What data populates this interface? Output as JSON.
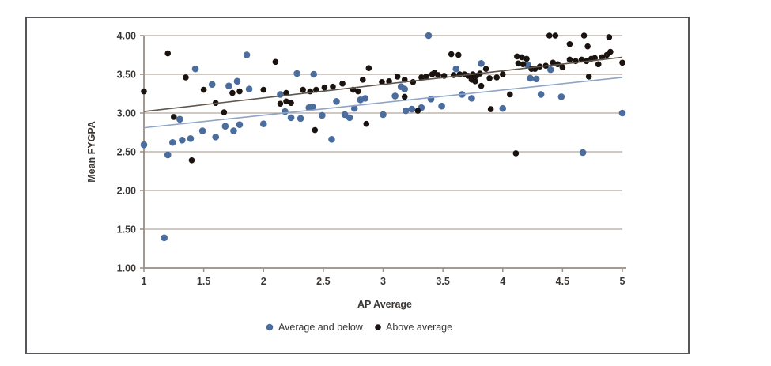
{
  "figure": {
    "background": "#ffffff",
    "border_color": "#55565a"
  },
  "colors": {
    "grid": "#b3a69e",
    "axis": "#9a8e85",
    "text": "#3a3633",
    "blue_marker": "#4a6d9e",
    "black_marker": "#1a1310",
    "blue_trend": "#8fa5c6",
    "black_trend": "#5f564e"
  },
  "chart_data": {
    "type": "scatter",
    "title": "",
    "xlabel": "AP Average",
    "ylabel": "Mean FYGPA",
    "xlim": [
      1,
      5
    ],
    "ylim": [
      1.0,
      4.0
    ],
    "x_ticks": [
      1,
      1.5,
      2,
      2.5,
      3,
      3.5,
      4,
      4.5,
      5
    ],
    "x_tick_labels": [
      "1",
      "1.5",
      "2",
      "2.5",
      "3",
      "3.5",
      "4",
      "4.5",
      "5"
    ],
    "y_ticks": [
      1.0,
      1.5,
      2.0,
      2.5,
      3.0,
      3.5,
      4.0
    ],
    "y_tick_labels": [
      "1.00",
      "1.50",
      "2.00",
      "2.50",
      "3.00",
      "3.50",
      "4.00"
    ],
    "grid": "horizontal-only",
    "legend_position": "bottom-center",
    "series": [
      {
        "name": "Average and below",
        "color": "#4a6d9e",
        "marker_radius": 4.3,
        "trend_line": {
          "x": [
            1,
            5
          ],
          "y": [
            2.81,
            3.46
          ],
          "color": "#8fa5c6"
        },
        "points": [
          [
            1.0,
            2.59
          ],
          [
            1.17,
            1.39
          ],
          [
            1.2,
            2.46
          ],
          [
            1.24,
            2.62
          ],
          [
            1.32,
            2.65
          ],
          [
            1.39,
            2.67
          ],
          [
            1.3,
            2.92
          ],
          [
            1.43,
            3.57
          ],
          [
            1.49,
            2.77
          ],
          [
            1.57,
            3.37
          ],
          [
            1.6,
            2.69
          ],
          [
            1.68,
            2.83
          ],
          [
            1.71,
            3.35
          ],
          [
            1.78,
            3.41
          ],
          [
            1.75,
            2.77
          ],
          [
            1.8,
            2.85
          ],
          [
            1.86,
            3.75
          ],
          [
            1.88,
            3.31
          ],
          [
            2.0,
            2.86
          ],
          [
            2.14,
            3.24
          ],
          [
            2.18,
            3.02
          ],
          [
            2.23,
            2.94
          ],
          [
            2.28,
            3.51
          ],
          [
            2.31,
            2.93
          ],
          [
            2.38,
            3.07
          ],
          [
            2.41,
            3.08
          ],
          [
            2.42,
            3.5
          ],
          [
            2.49,
            2.97
          ],
          [
            2.57,
            2.66
          ],
          [
            2.61,
            3.15
          ],
          [
            2.68,
            2.98
          ],
          [
            2.72,
            2.94
          ],
          [
            2.76,
            3.06
          ],
          [
            2.81,
            3.17
          ],
          [
            2.85,
            3.19
          ],
          [
            3.0,
            2.98
          ],
          [
            3.1,
            3.22
          ],
          [
            3.15,
            3.34
          ],
          [
            3.18,
            3.31
          ],
          [
            3.19,
            3.03
          ],
          [
            3.24,
            3.05
          ],
          [
            3.32,
            3.07
          ],
          [
            3.38,
            4.0
          ],
          [
            3.4,
            3.18
          ],
          [
            3.49,
            3.09
          ],
          [
            3.61,
            3.57
          ],
          [
            3.66,
            3.24
          ],
          [
            3.74,
            3.19
          ],
          [
            3.82,
            3.64
          ],
          [
            4.0,
            3.06
          ],
          [
            4.21,
            3.62
          ],
          [
            4.23,
            3.45
          ],
          [
            4.28,
            3.44
          ],
          [
            4.32,
            3.24
          ],
          [
            4.4,
            3.56
          ],
          [
            4.49,
            3.21
          ],
          [
            4.67,
            2.49
          ],
          [
            5.0,
            3.0
          ]
        ]
      },
      {
        "name": "Above average",
        "color": "#1a1310",
        "marker_radius": 3.8,
        "trend_line": {
          "x": [
            1,
            5
          ],
          "y": [
            3.02,
            3.72
          ],
          "color": "#5f564e"
        },
        "points": [
          [
            1.0,
            3.28
          ],
          [
            1.2,
            3.77
          ],
          [
            1.25,
            2.95
          ],
          [
            1.35,
            3.46
          ],
          [
            1.4,
            2.39
          ],
          [
            1.5,
            3.3
          ],
          [
            1.6,
            3.13
          ],
          [
            1.67,
            3.01
          ],
          [
            1.74,
            3.26
          ],
          [
            1.8,
            3.28
          ],
          [
            2.0,
            3.3
          ],
          [
            2.1,
            3.66
          ],
          [
            2.14,
            3.12
          ],
          [
            2.19,
            3.15
          ],
          [
            2.23,
            3.13
          ],
          [
            2.19,
            3.26
          ],
          [
            2.33,
            3.3
          ],
          [
            2.39,
            3.28
          ],
          [
            2.43,
            2.78
          ],
          [
            2.44,
            3.3
          ],
          [
            2.51,
            3.33
          ],
          [
            2.58,
            3.34
          ],
          [
            2.66,
            3.38
          ],
          [
            2.75,
            3.3
          ],
          [
            2.79,
            3.28
          ],
          [
            2.83,
            3.43
          ],
          [
            2.86,
            2.86
          ],
          [
            2.88,
            3.58
          ],
          [
            2.99,
            3.4
          ],
          [
            3.05,
            3.41
          ],
          [
            3.12,
            3.47
          ],
          [
            3.18,
            3.43
          ],
          [
            3.18,
            3.21
          ],
          [
            3.25,
            3.4
          ],
          [
            3.29,
            3.03
          ],
          [
            3.32,
            3.46
          ],
          [
            3.36,
            3.47
          ],
          [
            3.41,
            3.5
          ],
          [
            3.46,
            3.49
          ],
          [
            3.51,
            3.48
          ],
          [
            3.43,
            3.52
          ],
          [
            3.57,
            3.76
          ],
          [
            3.63,
            3.75
          ],
          [
            3.59,
            3.49
          ],
          [
            3.64,
            3.5
          ],
          [
            3.68,
            3.5
          ],
          [
            3.71,
            3.48
          ],
          [
            3.75,
            3.5
          ],
          [
            3.78,
            3.48
          ],
          [
            3.81,
            3.51
          ],
          [
            3.74,
            3.43
          ],
          [
            3.77,
            3.41
          ],
          [
            3.82,
            3.35
          ],
          [
            3.86,
            3.57
          ],
          [
            3.89,
            3.45
          ],
          [
            3.9,
            3.05
          ],
          [
            3.95,
            3.46
          ],
          [
            4.0,
            3.5
          ],
          [
            4.06,
            3.24
          ],
          [
            4.11,
            2.48
          ],
          [
            4.12,
            3.73
          ],
          [
            4.16,
            3.72
          ],
          [
            4.2,
            3.7
          ],
          [
            4.13,
            3.64
          ],
          [
            4.17,
            3.63
          ],
          [
            4.24,
            3.57
          ],
          [
            4.27,
            3.57
          ],
          [
            4.31,
            3.6
          ],
          [
            4.36,
            3.61
          ],
          [
            4.39,
            4.0
          ],
          [
            4.44,
            4.0
          ],
          [
            4.42,
            3.65
          ],
          [
            4.46,
            3.63
          ],
          [
            4.5,
            3.59
          ],
          [
            4.56,
            3.89
          ],
          [
            4.56,
            3.69
          ],
          [
            4.61,
            3.67
          ],
          [
            4.66,
            3.69
          ],
          [
            4.7,
            3.67
          ],
          [
            4.68,
            4.0
          ],
          [
            4.71,
            3.86
          ],
          [
            4.72,
            3.47
          ],
          [
            4.74,
            3.7
          ],
          [
            4.77,
            3.71
          ],
          [
            4.8,
            3.63
          ],
          [
            4.83,
            3.72
          ],
          [
            4.87,
            3.75
          ],
          [
            4.89,
            3.98
          ],
          [
            4.9,
            3.79
          ],
          [
            5.0,
            3.65
          ]
        ]
      }
    ]
  }
}
